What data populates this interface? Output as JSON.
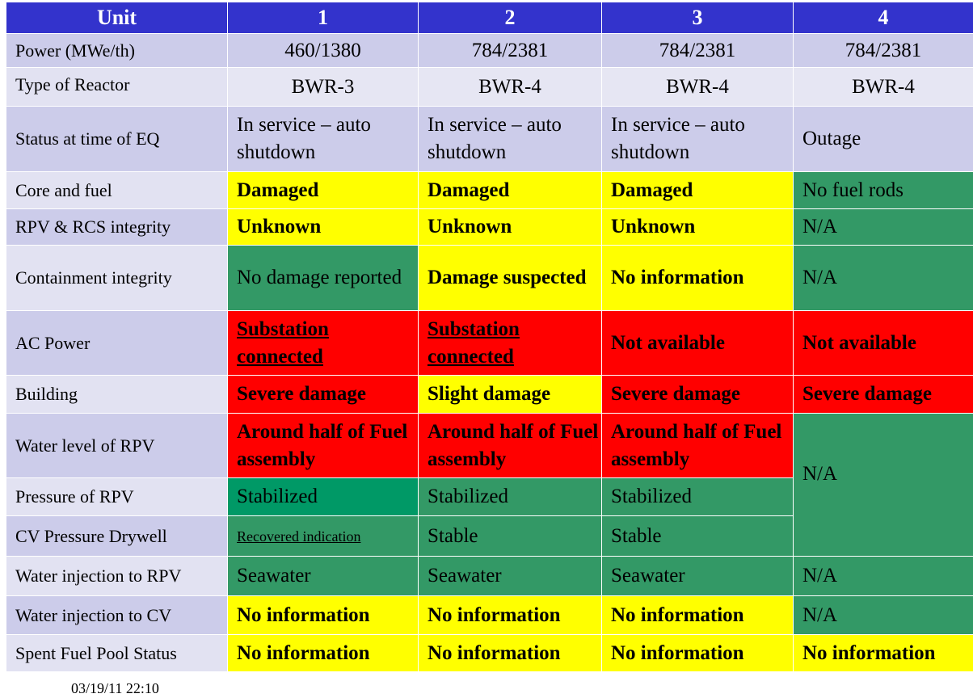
{
  "columns": [
    "Unit",
    "1",
    "2",
    "3",
    "4"
  ],
  "rows": {
    "power": {
      "label": "Power (MWe/th)",
      "u1": "460/1380",
      "u2": "784/2381",
      "u3": "784/2381",
      "u4": "784/2381"
    },
    "type": {
      "label": "Type of Reactor",
      "u1": "BWR-3",
      "u2": "BWR-4",
      "u3": "BWR-4",
      "u4": "BWR-4"
    },
    "status": {
      "label": "Status at time of EQ",
      "u1": "In service – auto shutdown",
      "u2": "In service – auto shutdown",
      "u3": "In service – auto shutdown",
      "u4": "Outage"
    },
    "core": {
      "label": "Core and fuel",
      "u1": "Damaged",
      "u2": "Damaged",
      "u3": "Damaged",
      "u4": "No fuel rods"
    },
    "rpv": {
      "label": "RPV & RCS integrity",
      "u1": "Unknown",
      "u2": "Unknown",
      "u3": "Unknown",
      "u4": "N/A"
    },
    "containment": {
      "label": "Containment integrity",
      "u1": "No damage reported",
      "u2": "Damage suspected",
      "u3": "No information",
      "u4": "N/A"
    },
    "ac": {
      "label": "AC Power",
      "u1": "Substation connected",
      "u2": "Substation connected",
      "u3": "Not available",
      "u4": "Not available"
    },
    "building": {
      "label": "Building",
      "u1": "Severe damage",
      "u2": "Slight damage",
      "u3": "Severe damage",
      "u4": "Severe damage"
    },
    "water_level": {
      "label": "Water level of RPV",
      "u1": "Around half of Fuel assembly",
      "u2": "Around half of Fuel assembly",
      "u3": "Around half of Fuel assembly",
      "u4": "N/A"
    },
    "pressure": {
      "label": "Pressure of RPV",
      "u1": "Stabilized",
      "u2": "Stabilized",
      "u3": "Stabilized"
    },
    "cv_pressure": {
      "label": "CV Pressure Drywell",
      "u1": "Recovered indication",
      "u2": "Stable",
      "u3": "Stable"
    },
    "inj_rpv": {
      "label": "Water injection to RPV",
      "u1": "Seawater",
      "u2": "Seawater",
      "u3": "Seawater",
      "u4": "N/A"
    },
    "inj_cv": {
      "label": "Water injection to CV",
      "u1": "No information",
      "u2": "No information",
      "u3": "No information",
      "u4": "N/A"
    },
    "spent": {
      "label": "Spent Fuel Pool Status",
      "u1": "No information",
      "u2": "No information",
      "u3": "No information",
      "u4": "No information"
    }
  },
  "timestamp": "03/19/11 22:10",
  "colors": {
    "header": "#3333cc",
    "yellow": "#ffff00",
    "green": "#339966",
    "red": "#ff0000",
    "label_bg": "#ccccea"
  }
}
